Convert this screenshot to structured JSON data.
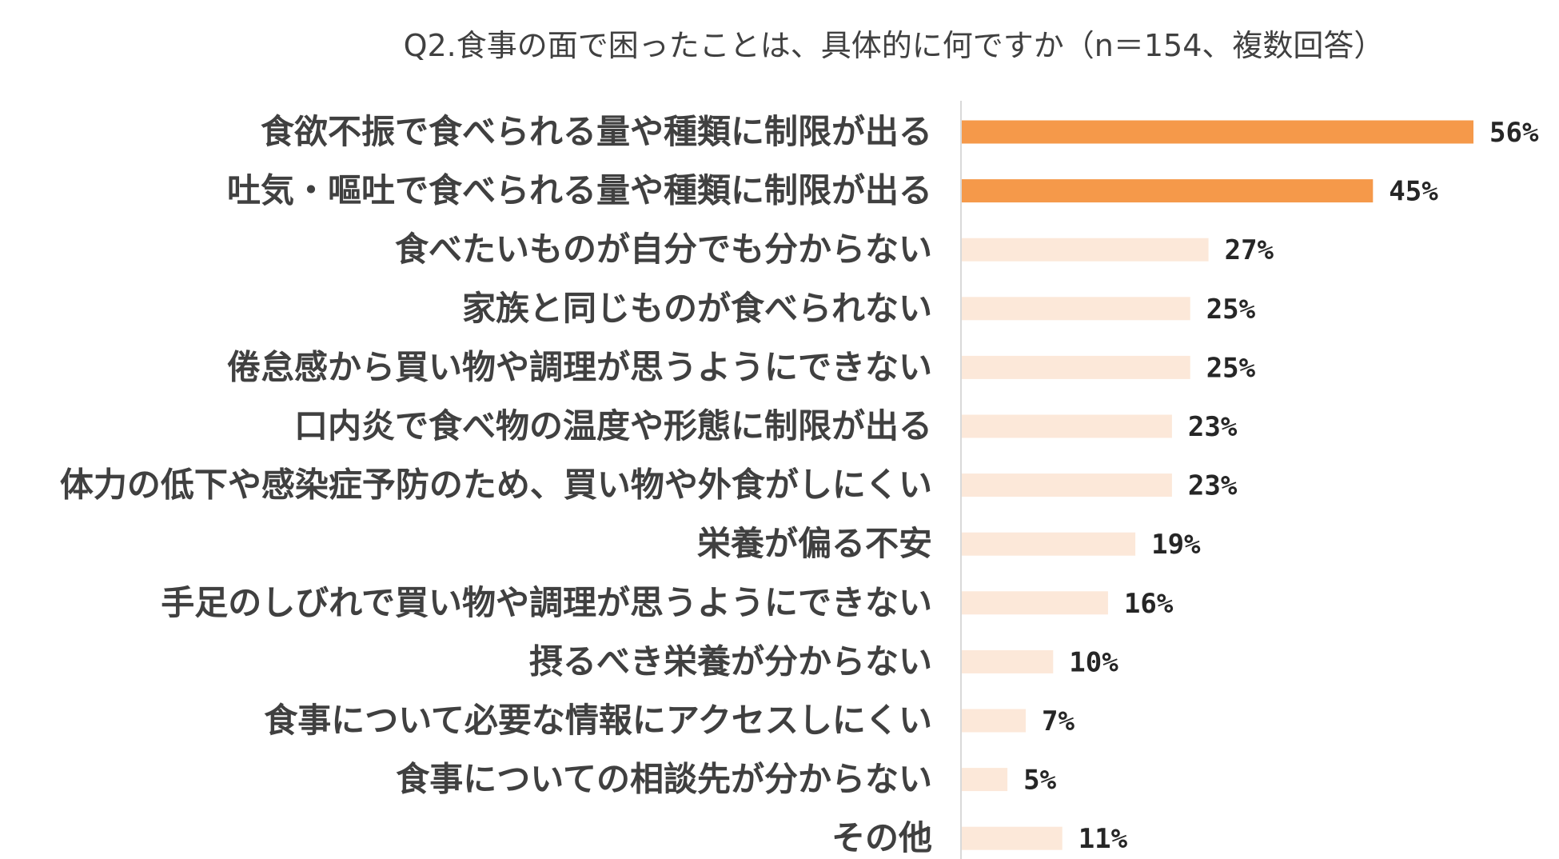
{
  "chart_data": {
    "type": "bar",
    "orientation": "horizontal",
    "title": "Q2.食事の面で困ったことは、具体的に何ですか（n＝154、複数回答）",
    "categories": [
      "食欲不振で食べられる量や種類に制限が出る",
      "吐気・嘔吐で食べられる量や種類に制限が出る",
      "食べたいものが自分でも分からない",
      "家族と同じものが食べられない",
      "倦怠感から買い物や調理が思うようにできない",
      "口内炎で食べ物の温度や形態に制限が出る",
      "体力の低下や感染症予防のため、買い物や外食がしにくい",
      "栄養が偏る不安",
      "手足のしびれで買い物や調理が思うようにできない",
      "摂るべき栄養が分からない",
      "食事について必要な情報にアクセスしにくい",
      "食事についての相談先が分からない",
      "その他"
    ],
    "values": [
      56,
      45,
      27,
      25,
      25,
      23,
      23,
      19,
      16,
      10,
      7,
      5,
      11
    ],
    "value_labels": [
      "56%",
      "45%",
      "27%",
      "25%",
      "25%",
      "23%",
      "23%",
      "19%",
      "16%",
      "10%",
      "7%",
      "5%",
      "11%"
    ],
    "unit": "%",
    "highlight_count": 2,
    "xlim": [
      0,
      56
    ],
    "grid": false,
    "legend": "none",
    "colors": {
      "highlight": "#F5994A",
      "normal": "#FCE8D9",
      "axis": "#D9D9D9",
      "label_text": "#404040",
      "value_text": "#262626"
    }
  }
}
